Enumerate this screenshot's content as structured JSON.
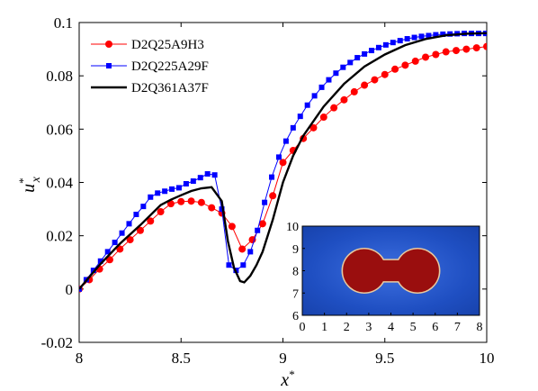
{
  "colors": {
    "red_series": "#ff0000",
    "blue_series": "#0000ff",
    "black_series": "#000000",
    "inset_background": "#1846b8",
    "inset_blob": "#9a0e0e",
    "inset_blob_edge": "#e7c9a0"
  },
  "chart_data": [
    {
      "type": "line",
      "xlabel": "x*",
      "ylabel": "u*x",
      "xlim": [
        8,
        10
      ],
      "ylim": [
        -0.02,
        0.1
      ],
      "xticks": [
        "8",
        "8.5",
        "9",
        "9.5",
        "10"
      ],
      "yticks": [
        "-0.02",
        "0",
        "0.02",
        "0.04",
        "0.06",
        "0.08",
        "0.1"
      ],
      "legend_placement": "top-left",
      "series": [
        {
          "name": "D2Q25A9H3",
          "marker": "circle",
          "color": "#ff0000",
          "x": [
            8.0,
            8.05,
            8.1,
            8.15,
            8.2,
            8.25,
            8.3,
            8.35,
            8.4,
            8.45,
            8.5,
            8.55,
            8.6,
            8.65,
            8.7,
            8.75,
            8.8,
            8.85,
            8.9,
            8.95,
            9.0,
            9.05,
            9.1,
            9.15,
            9.2,
            9.25,
            9.3,
            9.35,
            9.4,
            9.45,
            9.5,
            9.55,
            9.6,
            9.65,
            9.7,
            9.75,
            9.8,
            9.85,
            9.9,
            9.95,
            10.0
          ],
          "y": [
            0.0,
            0.0035,
            0.0075,
            0.011,
            0.015,
            0.0185,
            0.022,
            0.0255,
            0.029,
            0.032,
            0.0328,
            0.033,
            0.0325,
            0.0305,
            0.0285,
            0.0235,
            0.015,
            0.0185,
            0.0245,
            0.035,
            0.0475,
            0.052,
            0.0565,
            0.0605,
            0.0645,
            0.068,
            0.071,
            0.074,
            0.0765,
            0.0785,
            0.0805,
            0.0825,
            0.084,
            0.0855,
            0.087,
            0.088,
            0.089,
            0.0895,
            0.09,
            0.0905,
            0.091
          ]
        },
        {
          "name": "D2Q225A29F",
          "marker": "square",
          "color": "#0000ff",
          "x": [
            8.0,
            8.035,
            8.07,
            8.105,
            8.14,
            8.175,
            8.21,
            8.245,
            8.28,
            8.315,
            8.35,
            8.385,
            8.42,
            8.455,
            8.49,
            8.525,
            8.56,
            8.595,
            8.63,
            8.665,
            8.7,
            8.735,
            8.77,
            8.805,
            8.84,
            8.875,
            8.91,
            8.945,
            8.98,
            9.015,
            9.05,
            9.085,
            9.12,
            9.155,
            9.19,
            9.225,
            9.26,
            9.295,
            9.33,
            9.365,
            9.4,
            9.435,
            9.47,
            9.505,
            9.54,
            9.575,
            9.61,
            9.645,
            9.68,
            9.715,
            9.75,
            9.785,
            9.82,
            9.855,
            9.89,
            9.925,
            9.96,
            9.995
          ],
          "y": [
            0.0,
            0.0035,
            0.007,
            0.0105,
            0.014,
            0.0175,
            0.021,
            0.0245,
            0.028,
            0.031,
            0.0345,
            0.036,
            0.0367,
            0.0375,
            0.038,
            0.0395,
            0.0405,
            0.0418,
            0.0432,
            0.0428,
            0.03,
            0.009,
            0.007,
            0.009,
            0.014,
            0.022,
            0.0325,
            0.042,
            0.0495,
            0.0555,
            0.0605,
            0.0648,
            0.069,
            0.0725,
            0.0757,
            0.0785,
            0.081,
            0.0832,
            0.085,
            0.0868,
            0.0882,
            0.0895,
            0.0906,
            0.0916,
            0.0925,
            0.0932,
            0.0939,
            0.0944,
            0.0948,
            0.0951,
            0.0954,
            0.0956,
            0.0957,
            0.0958,
            0.0959,
            0.0959,
            0.0959,
            0.0959
          ]
        },
        {
          "name": "D2Q361A37F",
          "marker": "none",
          "color": "#000000",
          "x": [
            8.0,
            8.1,
            8.2,
            8.3,
            8.4,
            8.45,
            8.5,
            8.55,
            8.6,
            8.65,
            8.7,
            8.73,
            8.76,
            8.79,
            8.81,
            8.84,
            8.87,
            8.9,
            8.95,
            9.0,
            9.05,
            9.1,
            9.2,
            9.3,
            9.4,
            9.5,
            9.6,
            9.7,
            9.8,
            9.9,
            10.0
          ],
          "y": [
            0.0,
            0.009,
            0.017,
            0.024,
            0.0315,
            0.0335,
            0.0352,
            0.0368,
            0.0378,
            0.0382,
            0.033,
            0.018,
            0.008,
            0.003,
            0.0025,
            0.005,
            0.009,
            0.014,
            0.026,
            0.04,
            0.05,
            0.0575,
            0.0685,
            0.077,
            0.0835,
            0.088,
            0.0915,
            0.0938,
            0.0952,
            0.0958,
            0.096
          ]
        }
      ]
    },
    {
      "type": "heatmap",
      "xlim": [
        0,
        8
      ],
      "ylim": [
        6,
        10
      ],
      "xticks": [
        "0",
        "1",
        "2",
        "3",
        "4",
        "5",
        "6",
        "7",
        "8"
      ],
      "yticks": [
        "6",
        "7",
        "8",
        "9",
        "10"
      ],
      "blob": {
        "left_circle": {
          "cx": 2.8,
          "cy": 8.0,
          "r": 1.0
        },
        "right_circle": {
          "cx": 5.2,
          "cy": 8.0,
          "r": 1.0
        },
        "neck_half_height": 0.5
      }
    }
  ]
}
